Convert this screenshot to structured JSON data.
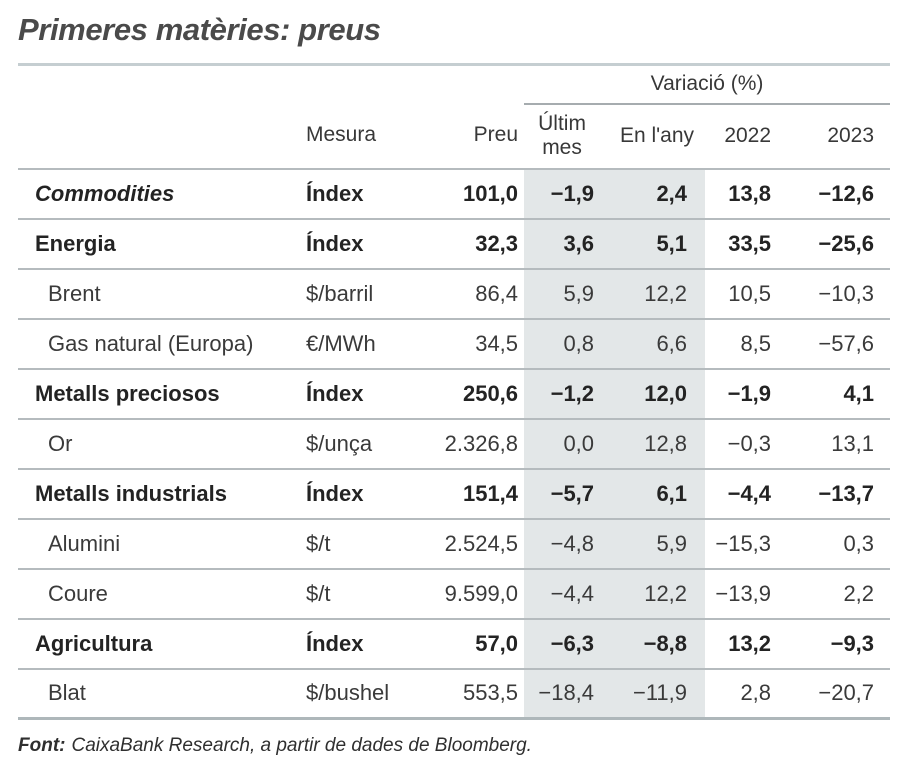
{
  "title": "Primeres matèries: preus",
  "chart_data": {
    "type": "table",
    "title": "Primeres matèries: preus",
    "group_header": "Variació (%)",
    "columns": [
      "",
      "Mesura",
      "Preu",
      "Últim mes",
      "En l'any",
      "2022",
      "2023"
    ],
    "highlighted_columns": [
      "Últim mes",
      "En l'any"
    ],
    "rows": [
      {
        "name": "Commodities",
        "emphasis": "bold-italic",
        "indent": false,
        "mesura": "Índex",
        "preu": "101,0",
        "ultim_mes": "−1,9",
        "en_lany": "2,4",
        "y2022": "13,8",
        "y2023": "−12,6"
      },
      {
        "name": "Energia",
        "emphasis": "bold",
        "indent": false,
        "mesura": "Índex",
        "preu": "32,3",
        "ultim_mes": "3,6",
        "en_lany": "5,1",
        "y2022": "33,5",
        "y2023": "−25,6"
      },
      {
        "name": "Brent",
        "emphasis": "normal",
        "indent": true,
        "mesura": "$/barril",
        "preu": "86,4",
        "ultim_mes": "5,9",
        "en_lany": "12,2",
        "y2022": "10,5",
        "y2023": "−10,3"
      },
      {
        "name": "Gas natural (Europa)",
        "emphasis": "normal",
        "indent": true,
        "mesura": "€/MWh",
        "preu": "34,5",
        "ultim_mes": "0,8",
        "en_lany": "6,6",
        "y2022": "8,5",
        "y2023": "−57,6"
      },
      {
        "name": "Metalls preciosos",
        "emphasis": "bold",
        "indent": false,
        "mesura": "Índex",
        "preu": "250,6",
        "ultim_mes": "−1,2",
        "en_lany": "12,0",
        "y2022": "−1,9",
        "y2023": "4,1"
      },
      {
        "name": "Or",
        "emphasis": "normal",
        "indent": true,
        "mesura": "$/unça",
        "preu": "2.326,8",
        "ultim_mes": "0,0",
        "en_lany": "12,8",
        "y2022": "−0,3",
        "y2023": "13,1"
      },
      {
        "name": "Metalls industrials",
        "emphasis": "bold",
        "indent": false,
        "mesura": "Índex",
        "preu": "151,4",
        "ultim_mes": "−5,7",
        "en_lany": "6,1",
        "y2022": "−4,4",
        "y2023": "−13,7"
      },
      {
        "name": "Alumini",
        "emphasis": "normal",
        "indent": true,
        "mesura": "$/t",
        "preu": "2.524,5",
        "ultim_mes": "−4,8",
        "en_lany": "5,9",
        "y2022": "−15,3",
        "y2023": "0,3"
      },
      {
        "name": "Coure",
        "emphasis": "normal",
        "indent": true,
        "mesura": "$/t",
        "preu": "9.599,0",
        "ultim_mes": "−4,4",
        "en_lany": "12,2",
        "y2022": "−13,9",
        "y2023": "2,2"
      },
      {
        "name": "Agricultura",
        "emphasis": "bold",
        "indent": false,
        "mesura": "Índex",
        "preu": "57,0",
        "ultim_mes": "−6,3",
        "en_lany": "−8,8",
        "y2022": "13,2",
        "y2023": "−9,3"
      },
      {
        "name": "Blat",
        "emphasis": "normal",
        "indent": true,
        "mesura": "$/bushel",
        "preu": "553,5",
        "ultim_mes": "−18,4",
        "en_lany": "−11,9",
        "y2022": "2,8",
        "y2023": "−20,7"
      }
    ],
    "source": "Font: CaixaBank Research, a partir de dades de Bloomberg."
  },
  "source_note": {
    "label": "Font:",
    "text": "CaixaBank Research, a partir de dades de Bloomberg."
  },
  "colors": {
    "highlight_band": "#e3e7e8",
    "title_text": "#4a4a4a",
    "top_rule": "#c5ced1",
    "bottom_rule": "#aeb7ba",
    "row_divider": "#b5bbbe"
  }
}
